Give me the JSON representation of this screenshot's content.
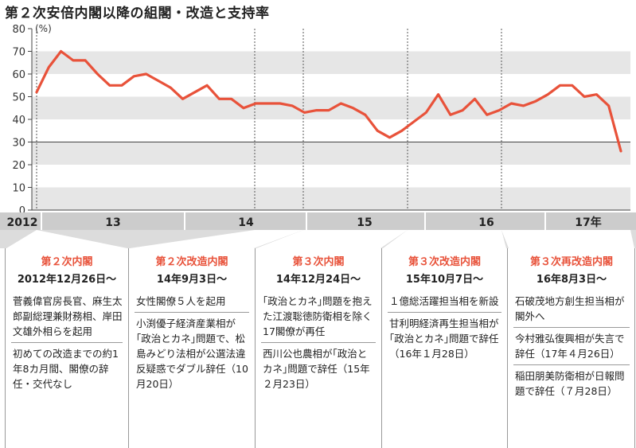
{
  "title": "第２次安倍内閣以降の組閣・改造と支持率",
  "chart_data": {
    "type": "line",
    "unit_label": "(%)",
    "ylim": [
      0,
      80
    ],
    "yticks": [
      0,
      10,
      20,
      30,
      40,
      50,
      60,
      70,
      80
    ],
    "reference_line": 30,
    "x_labels": [
      "2012",
      "13",
      "14",
      "15",
      "16",
      "17年"
    ],
    "series": [
      {
        "values": [
          52,
          63,
          70,
          66,
          66,
          60,
          55,
          55,
          59,
          60,
          57,
          54,
          49,
          52,
          55,
          49,
          49,
          45,
          47,
          47,
          47,
          46,
          43,
          44,
          44,
          47,
          45,
          42,
          35,
          32,
          35,
          39,
          43,
          51,
          42,
          44,
          49,
          42,
          44,
          47,
          46,
          48,
          51,
          55,
          55,
          50,
          51,
          46,
          26
        ]
      }
    ]
  },
  "panels": [
    {
      "heading": "第２次内閣",
      "date": "2012年12月26日～",
      "notes": [
        "菅義偉官房長官、麻生太郎副総理兼財務相、岸田文雄外相らを起用",
        "初めての改造までの約1年8カ月間、閣僚の辞任・交代なし"
      ]
    },
    {
      "heading": "第２次改造内閣",
      "date": "14年9月3日～",
      "notes": [
        "女性閣僚５人を起用",
        "小渕優子経済産業相が｢政治とカネ｣問題で、松島みどり法相が公選法違反疑惑でダブル辞任（10月20日）"
      ]
    },
    {
      "heading": "第３次内閣",
      "date": "14年12月24日～",
      "notes": [
        "｢政治とカネ｣問題を抱えた江渡聡徳防衛相を除く17閣僚が再任",
        "西川公也農相が｢政治とカネ｣問題で辞任（15年２月23日）"
      ]
    },
    {
      "heading": "第３次改造内閣",
      "date": "15年10月7日～",
      "notes": [
        "１億総活躍担当相を新設",
        "甘利明経済再生担当相が｢政治とカネ｣問題で辞任（16年１月28日）"
      ]
    },
    {
      "heading": "第３次再改造内閣",
      "date": "16年8月3日～",
      "notes": [
        "石破茂地方創生担当相が閣外へ",
        "今村雅弘復興相が失言で辞任（17年４月26日）",
        "稲田朋美防衛相が日報問題で辞任（７月28日）"
      ]
    }
  ],
  "colors": {
    "line": "#e8523a",
    "heading": "#e8523a",
    "band": "#e6e6e6",
    "axis_bar": "#cccccc",
    "bottom_area": "#dcdcdc"
  }
}
